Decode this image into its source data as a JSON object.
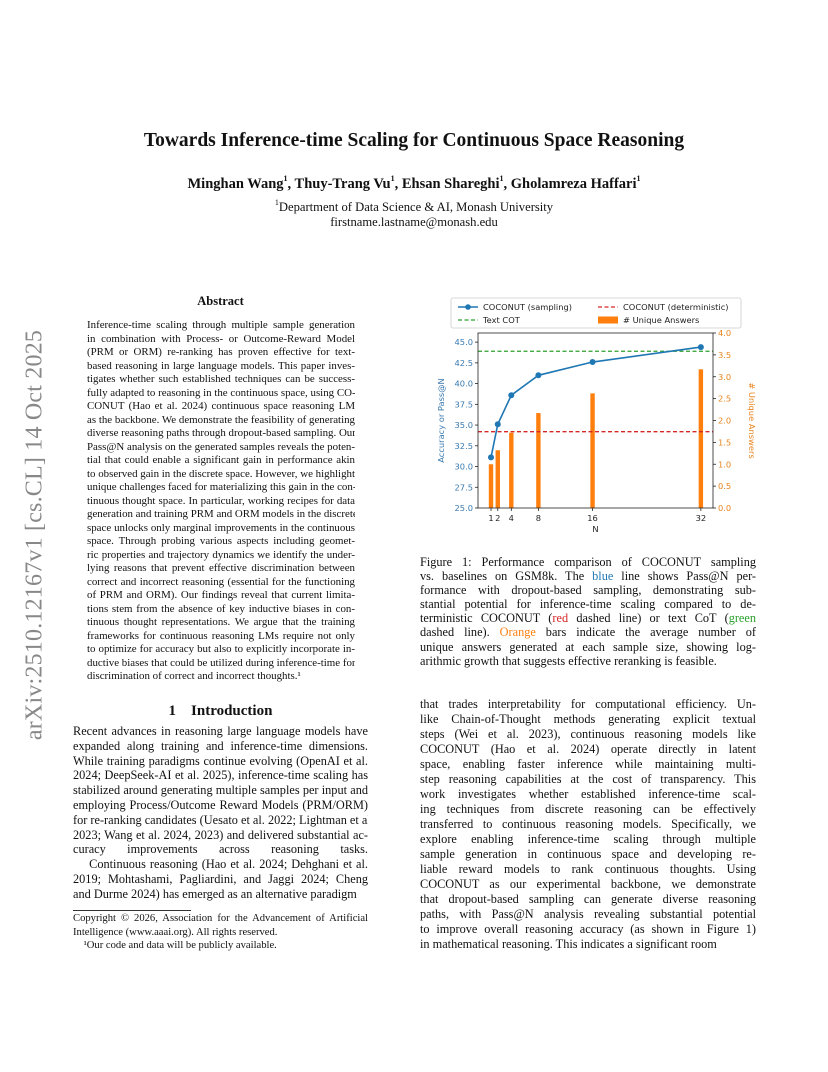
{
  "stamp": "arXiv:2510.12167v1  [cs.CL]  14 Oct 2025",
  "title": "Towards Inference-time Scaling for Continuous Space Reasoning",
  "authors": [
    {
      "name": "Minghan Wang",
      "aff": "1"
    },
    {
      "name": "Thuy-Trang Vu",
      "aff": "1"
    },
    {
      "name": "Ehsan Shareghi",
      "aff": "1"
    },
    {
      "name": "Gholamreza Haffari",
      "aff": "1"
    }
  ],
  "affiliation": {
    "mark": "1",
    "text": "Department of Data Science & AI, Monash University"
  },
  "email": "firstname.lastname@monash.edu",
  "abstract_heading": "Abstract",
  "abstract_lines": [
    "Inference-time scaling through multiple sample generation",
    "in combination with Process- or Outcome-Reward Model",
    "(PRM or ORM) re-ranking has proven effective for text-",
    "based reasoning in large language models. This paper inves-",
    "tigates whether such established techniques can be success-",
    "fully adapted to reasoning in the continuous space, using CO-",
    "CONUT (Hao et al. 2024) continuous space reasoning LM",
    "as the backbone. We demonstrate the feasibility of generating",
    "diverse reasoning paths through dropout-based sampling. Our",
    "Pass@N analysis on the generated samples reveals the poten-",
    "tial that could enable a significant gain in performance akin",
    "to observed gain in the discrete space. However, we highlight",
    "unique challenges faced for materializing this gain in the con-",
    "tinuous thought space. In particular, working recipes for data",
    "generation and training PRM and ORM models in the discrete",
    "space unlocks only marginal improvements in the continuous",
    "space. Through probing various aspects including geomet-",
    "ric properties and trajectory dynamics we identify the under-",
    "lying reasons that prevent effective discrimination between",
    "correct and incorrect reasoning (essential for the functioning",
    "of PRM and ORM). Our findings reveal that current limita-",
    "tions stem from the absence of key inductive biases in con-",
    "tinuous thought representations. We argue that the training",
    "frameworks for continuous reasoning LMs require not only",
    "to optimize for accuracy but also to explicitly incorporate in-",
    "ductive biases that could be utilized during inference-time for",
    "discrimination of correct and incorrect thoughts.¹"
  ],
  "intro_heading": "1    Introduction",
  "intro_lines": [
    "Recent advances in reasoning large language models have",
    "expanded along training and inference-time dimensions.",
    "While training paradigms continue evolving (OpenAI et al.",
    "2024; DeepSeek-AI et al. 2025), inference-time scaling has",
    "stabilized around generating multiple samples per input and",
    "employing Process/Outcome Reward Models (PRM/ORM)",
    "for re-ranking candidates (Uesato et al. 2022; Lightman et al.",
    "2023; Wang et al. 2024, 2023) and delivered substantial ac-",
    "curacy improvements across reasoning tasks.",
    "    Continuous reasoning (Hao et al. 2024; Dehghani et al.",
    "2019; Mohtashami, Pagliardini, and Jaggi 2024; Cheng",
    "and Durme 2024) has emerged as an alternative paradigm"
  ],
  "footnotes": [
    "Copyright © 2026, Association for the Advancement of Artificial",
    "Intelligence (www.aaai.org). All rights reserved.",
    "    ¹Our code and data will be publicly available."
  ],
  "caption_lines": [
    [
      {
        "t": "Figure 1: Performance comparison of COCONUT sampling"
      }
    ],
    [
      {
        "t": "vs. baselines on GSM8k. The "
      },
      {
        "t": "blue",
        "c": "#1f77b4"
      },
      {
        "t": " line shows Pass@N per-"
      }
    ],
    [
      {
        "t": "formance with dropout-based sampling, demonstrating sub-"
      }
    ],
    [
      {
        "t": "stantial potential for inference-time scaling compared to de-"
      }
    ],
    [
      {
        "t": "terministic COCONUT ("
      },
      {
        "t": "red",
        "c": "#d62728"
      },
      {
        "t": " dashed line) or text CoT ("
      },
      {
        "t": "green",
        "c": "#2ca02c"
      }
    ],
    [
      {
        "t": "dashed line). "
      },
      {
        "t": "Orange",
        "c": "#ff7f0e"
      },
      {
        "t": " bars indicate the average number of"
      }
    ],
    [
      {
        "t": "unique answers generated at each sample size, showing log-"
      }
    ],
    [
      {
        "t": "arithmic growth that suggests effective reranking is feasible."
      }
    ]
  ],
  "right_lines": [
    "that trades interpretability for computational efficiency. Un-",
    "like Chain-of-Thought methods generating explicit textual",
    "steps (Wei et al. 2023), continuous reasoning models like",
    "COCONUT (Hao et al. 2024) operate directly in latent",
    "space, enabling faster inference while maintaining multi-",
    "step reasoning capabilities at the cost of transparency. This",
    "work investigates whether established inference-time scal-",
    "ing techniques from discrete reasoning can be effectively",
    "transferred to continuous reasoning models. Specifically, we",
    "explore enabling inference-time scaling through multiple",
    "sample generation in continuous space and developing re-",
    "liable reward models to rank continuous thoughts. Using",
    "COCONUT as our experimental backbone, we demonstrate",
    "that dropout-based sampling can generate diverse reasoning",
    "paths, with Pass@N analysis revealing substantial potential",
    "to improve overall reasoning accuracy (as shown in Figure 1)",
    "in mathematical reasoning. This indicates a significant room"
  ],
  "chart_data": {
    "type": "line+bar",
    "xlabel": "N",
    "ylabel": "Accuracy or Pass@N",
    "y2label": "# Unique Answers",
    "x": [
      1,
      2,
      4,
      8,
      16,
      32
    ],
    "xticks": [
      "1",
      "2",
      "4",
      "8",
      "16",
      "32"
    ],
    "ylim": [
      25.0,
      46.1
    ],
    "yticks": [
      "25.0",
      "27.5",
      "30.0",
      "32.5",
      "35.0",
      "37.5",
      "40.0",
      "42.5",
      "45.0"
    ],
    "y2lim": [
      0.0,
      4.0
    ],
    "y2ticks": [
      "0.0",
      "0.5",
      "1.0",
      "1.5",
      "2.0",
      "2.5",
      "3.0",
      "3.5",
      "4.0"
    ],
    "series": [
      {
        "name": "COCONUT (sampling)",
        "kind": "line",
        "axis": "left",
        "color": "#1f77b4",
        "values": [
          31.1,
          35.1,
          38.6,
          41.0,
          42.6,
          44.4
        ]
      },
      {
        "name": "# Unique Answers",
        "kind": "bar",
        "axis": "right",
        "color": "#ff7f0e",
        "values": [
          1.0,
          1.32,
          1.72,
          2.17,
          2.62,
          3.17
        ]
      }
    ],
    "hlines": [
      {
        "name": "COCONUT (deterministic)",
        "value": 34.2,
        "color": "#d62728",
        "style": "dashed"
      },
      {
        "name": "Text COT",
        "value": 43.9,
        "color": "#2ca02c",
        "style": "dashed"
      }
    ],
    "legend": [
      "COCONUT (sampling)",
      "COCONUT (deterministic)",
      "Text COT",
      "# Unique Answers"
    ],
    "legend_placement": "top",
    "grid": false
  }
}
